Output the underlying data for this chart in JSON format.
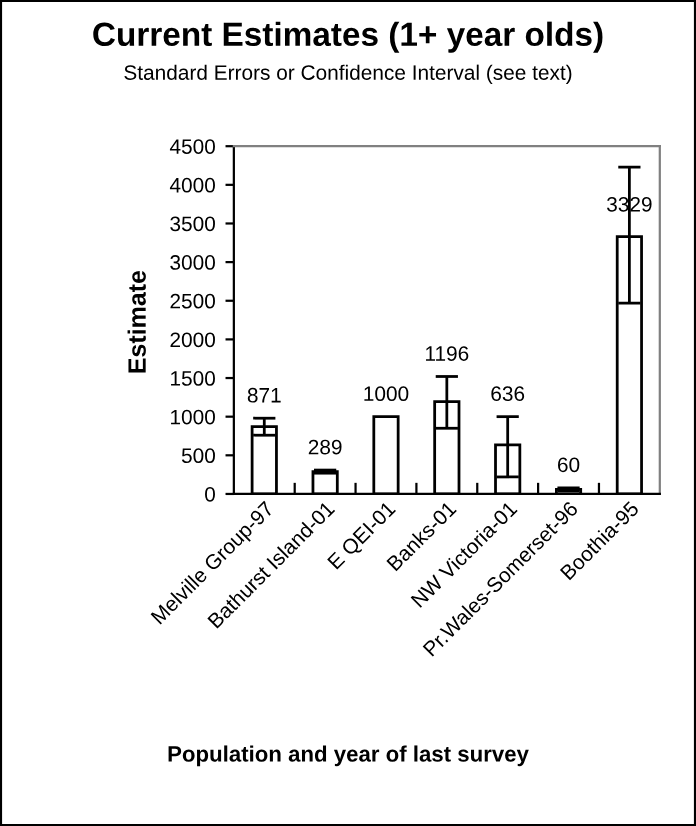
{
  "chart_data": {
    "type": "bar",
    "title": "Current Estimates (1+ year olds)",
    "subtitle": "Standard Errors or Confidence Interval (see text)",
    "xlabel": "Population and year of last survey",
    "ylabel": "Estimate",
    "categories": [
      "Melville Group-97",
      "Bathurst Island-01",
      "E QEI-01",
      "Banks-01",
      "NW Victoria-01",
      "Pr.Wales-Somerset-96",
      "Boothia-95"
    ],
    "values": [
      871,
      289,
      1000,
      1196,
      636,
      60,
      3329
    ],
    "errors": [
      [
        760,
        980
      ],
      20,
      null,
      [
        850,
        1520
      ],
      [
        220,
        1000
      ],
      20,
      [
        2470,
        4230
      ]
    ],
    "color": "#ffffff",
    "data_labels": true,
    "ylim": [
      0,
      4500
    ],
    "yticks": [
      0,
      500,
      1000,
      1500,
      2000,
      2500,
      3000,
      3500,
      4000,
      4500
    ],
    "grid": false,
    "legend": false
  }
}
